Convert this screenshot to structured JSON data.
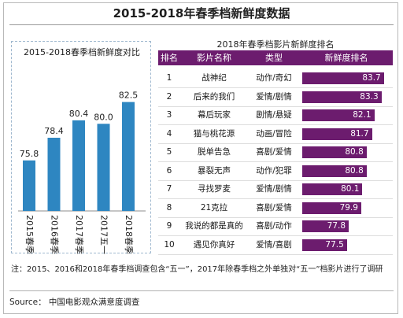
{
  "title": "2015-2018年春季档新鲜度数据",
  "chart_data": [
    {
      "type": "bar",
      "title": "2015-2018春季档新鲜度对比",
      "categories": [
        "2015春季档",
        "2016春季档",
        "2017春季档",
        "2017五一档",
        "2018春季档"
      ],
      "values": [
        75.8,
        78.4,
        80.4,
        80.0,
        82.5
      ],
      "value_labels": [
        "75.8",
        "78.4",
        "80.4",
        "80.0",
        "82.5"
      ],
      "ylim": [
        70,
        84
      ],
      "bar_color": "#2e86c1",
      "grid": false,
      "legend": "none"
    },
    {
      "type": "table",
      "title": "2018年春季档影片新鲜度排名",
      "columns": [
        "排名",
        "影片名称",
        "类型",
        "新鲜度排名"
      ],
      "rows": [
        {
          "rank": "1",
          "name": "战神纪",
          "genre": "动作/奇幻",
          "value": 83.7,
          "label": "83.7"
        },
        {
          "rank": "2",
          "name": "后来的我们",
          "genre": "爱情/剧情",
          "value": 83.3,
          "label": "83.3"
        },
        {
          "rank": "3",
          "name": "幕后玩家",
          "genre": "剧情/悬疑",
          "value": 82.1,
          "label": "82.1"
        },
        {
          "rank": "4",
          "name": "猫与桃花源",
          "genre": "动画/冒险",
          "value": 81.7,
          "label": "81.7"
        },
        {
          "rank": "5",
          "name": "脱单告急",
          "genre": "喜剧/爱情",
          "value": 80.8,
          "label": "80.8"
        },
        {
          "rank": "6",
          "name": "暴裂无声",
          "genre": "动作/犯罪",
          "value": 80.8,
          "label": "80.8"
        },
        {
          "rank": "7",
          "name": "寻找罗麦",
          "genre": "爱情/剧情",
          "value": 80.1,
          "label": "80.1"
        },
        {
          "rank": "8",
          "name": "21克拉",
          "genre": "喜剧/爱情",
          "value": 79.9,
          "label": "79.9"
        },
        {
          "rank": "9",
          "name": "我说的都是真的",
          "genre": "喜剧/动作",
          "value": 77.8,
          "label": "77.8"
        },
        {
          "rank": "10",
          "name": "遇见你真好",
          "genre": "爱情/喜剧",
          "value": 77.5,
          "label": "77.5"
        }
      ],
      "bar_range": [
        70,
        84
      ],
      "bar_color": "#6c1c6e",
      "header_color": "#6c1c6e"
    }
  ],
  "note": "注：2015、2016和2018年春季档调查包含“五一”，2017年除春季档之外单独对“五一”档影片进行了调研",
  "source": "Source： 中国电影观众满意度调查"
}
